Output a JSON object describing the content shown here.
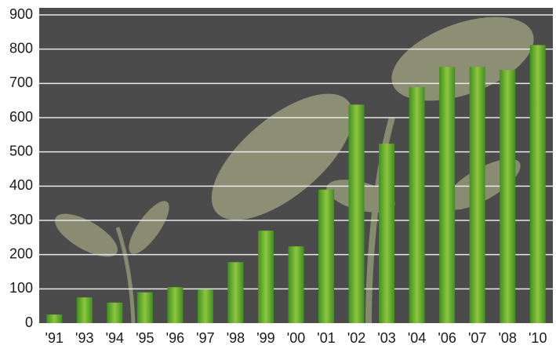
{
  "chart_data": {
    "type": "bar",
    "categories": [
      "'91",
      "'93",
      "'94",
      "'95",
      "'96",
      "'97",
      "'98",
      "'99",
      "'00",
      "'01",
      "'02",
      "'03",
      "'04",
      "'06",
      "'07",
      "'08",
      "'10"
    ],
    "values": [
      25,
      75,
      60,
      90,
      105,
      98,
      178,
      270,
      224,
      390,
      638,
      524,
      689,
      748,
      748,
      739,
      812
    ],
    "color": "#8dc63f",
    "ylim": [
      0,
      900
    ],
    "yticks": [
      0,
      100,
      200,
      300,
      400,
      500,
      600,
      700,
      800,
      900
    ],
    "grid": true
  }
}
